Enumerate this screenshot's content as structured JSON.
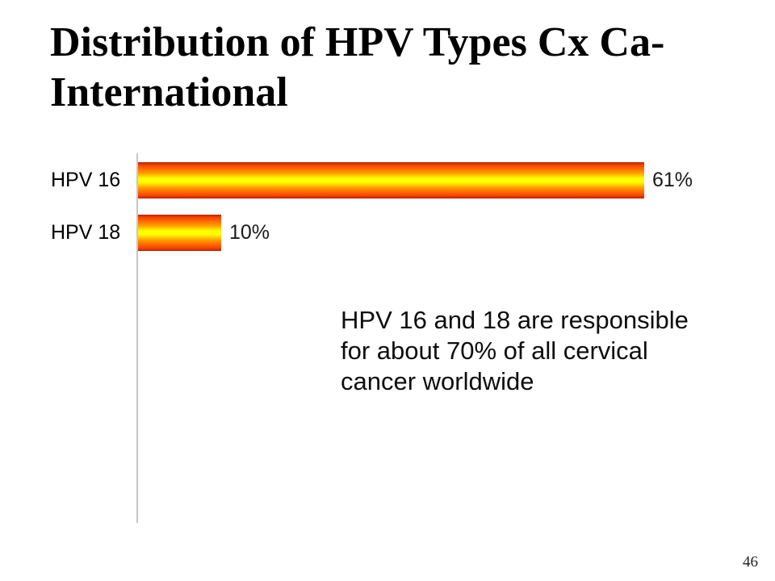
{
  "slide": {
    "title_lines": [
      "Distribution of HPV Types Cx Ca-",
      "International"
    ],
    "page_number": "46"
  },
  "annotation": {
    "lines": [
      "HPV 16 and 18 are responsible",
      "for about 70% of all cervical",
      "cancer worldwide"
    ]
  },
  "chart_data": {
    "type": "bar",
    "orientation": "horizontal",
    "categories": [
      "HPV 16",
      "HPV 18"
    ],
    "values": [
      61,
      10
    ],
    "value_labels": [
      "61%",
      "10%"
    ],
    "title": "",
    "xlabel": "",
    "ylabel": "",
    "xlim": [
      0,
      70
    ],
    "grid": false,
    "legend": false,
    "axis_line_color": "#c6c6c6",
    "bar_gradient": [
      "#a82a00",
      "#ff4000",
      "#ff9e00",
      "#ffff00"
    ]
  }
}
